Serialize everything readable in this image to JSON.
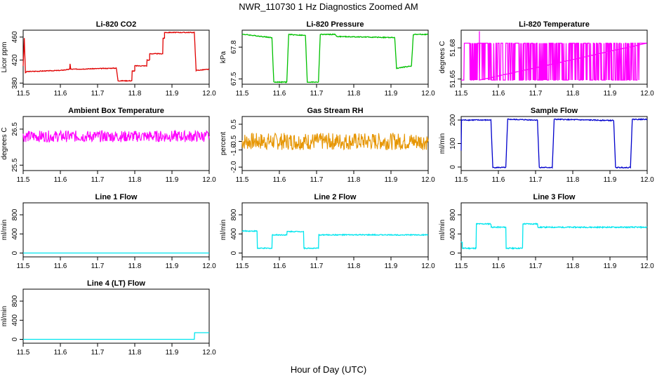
{
  "figure": {
    "title": "NWR_110730  1 Hz Diagnostics Zoomed AM",
    "xlabel": "Hour of Day (UTC)"
  },
  "chart_data": [
    {
      "id": "co2",
      "type": "line",
      "title": "Li-820 CO2",
      "xlabel": "",
      "ylabel": "Licor ppm",
      "color": "#e00000",
      "noise": 0.6,
      "xlim": [
        11.5,
        12.0
      ],
      "ylim": [
        378,
        472
      ],
      "xticks": [
        "11.5",
        "11.6",
        "11.7",
        "11.8",
        "11.9",
        "12.0"
      ],
      "yticks": [
        "380",
        "420",
        "460"
      ],
      "series": [
        {
          "x": [
            11.5,
            11.503,
            11.506,
            11.51,
            11.6,
            11.625,
            11.626,
            11.628,
            11.75,
            11.751,
            11.755,
            11.792,
            11.793,
            11.8,
            11.8,
            11.832,
            11.833,
            11.84,
            11.84,
            11.875,
            11.876,
            11.88,
            11.88,
            11.96,
            11.965,
            12.0
          ],
          "y": [
            410,
            458,
            398,
            400,
            402,
            404,
            414,
            404,
            406,
            404,
            384,
            384,
            401,
            401,
            410,
            410,
            420,
            420,
            431,
            431,
            458,
            458,
            468,
            468,
            402,
            404
          ]
        }
      ]
    },
    {
      "id": "pressure",
      "type": "line",
      "title": "Li-820 Pressure",
      "xlabel": "",
      "ylabel": "kPa",
      "color": "#00c000",
      "noise": 0.004,
      "xlim": [
        11.5,
        12.0
      ],
      "ylim": [
        67.45,
        67.96
      ],
      "xticks": [
        "11.5",
        "11.6",
        "11.7",
        "11.8",
        "11.9",
        "12.0"
      ],
      "yticks": [
        "67.5",
        "67.8"
      ],
      "series": [
        {
          "x": [
            11.5,
            11.505,
            11.58,
            11.585,
            11.62,
            11.625,
            11.67,
            11.675,
            11.705,
            11.71,
            11.75,
            11.755,
            11.91,
            11.915,
            11.95,
            11.955,
            11.96,
            11.965,
            12.0
          ],
          "y": [
            67.92,
            67.92,
            67.89,
            67.47,
            67.47,
            67.92,
            67.91,
            67.47,
            67.47,
            67.92,
            67.92,
            67.9,
            67.89,
            67.6,
            67.62,
            67.62,
            67.92,
            67.92,
            67.92
          ]
        }
      ]
    },
    {
      "id": "licor_temp",
      "type": "line",
      "title": "Li-820 Temperature",
      "xlabel": "",
      "ylabel": "degrees C",
      "color": "#ff00ff",
      "noise": 0,
      "pattern": "binary",
      "binary_levels": [
        51.649,
        51.6845
      ],
      "spike": [
        11.549,
        51.696
      ],
      "xlim": [
        11.5,
        12.0
      ],
      "ylim": [
        51.645,
        51.697
      ],
      "xticks": [
        "11.5",
        "11.6",
        "11.7",
        "11.8",
        "11.9",
        "12.0"
      ],
      "yticks": [
        "51.65",
        "51.68"
      ],
      "series": [
        {
          "x": [
            11.5,
            12.0
          ],
          "y": [
            51.649,
            51.649
          ]
        }
      ]
    },
    {
      "id": "ambient_temp",
      "type": "line",
      "title": "Ambient Box Temperature",
      "xlabel": "",
      "ylabel": "degrees C",
      "color": "#ff00ff",
      "noise": 0.16,
      "xlim": [
        11.5,
        12.0
      ],
      "ylim": [
        25.35,
        26.85
      ],
      "xticks": [
        "11.5",
        "11.6",
        "11.7",
        "11.8",
        "11.9",
        "12.0"
      ],
      "yticks": [
        "25.5",
        "26.5"
      ],
      "series": [
        {
          "x": [
            11.5,
            12.0
          ],
          "y": [
            26.3,
            26.3
          ]
        }
      ]
    },
    {
      "id": "rh",
      "type": "line",
      "title": "Gas Stream RH",
      "xlabel": "",
      "ylabel": "percent",
      "color": "#e69500",
      "noise": 0.5,
      "xlim": [
        11.5,
        12.0
      ],
      "ylim": [
        -2.2,
        0.95
      ],
      "xticks": [
        "11.5",
        "11.6",
        "11.7",
        "11.8",
        "11.9",
        "12.0"
      ],
      "yticks": [
        "-2.0",
        "-1.0",
        "-0.5",
        "0.5"
      ],
      "ytick_values": [
        -2.0,
        -1.0,
        -0.5,
        0.5
      ],
      "series": [
        {
          "x": [
            11.5,
            12.0
          ],
          "y": [
            -0.5,
            -0.5
          ]
        }
      ]
    },
    {
      "id": "sample_flow",
      "type": "line",
      "title": "Sample Flow",
      "xlabel": "",
      "ylabel": "ml/min",
      "color": "#0000cc",
      "noise": 2,
      "xlim": [
        11.5,
        12.0
      ],
      "ylim": [
        -15,
        215
      ],
      "xticks": [
        "11.5",
        "11.6",
        "11.7",
        "11.8",
        "11.9",
        "12.0"
      ],
      "yticks": [
        "0",
        "100",
        "200"
      ],
      "series": [
        {
          "x": [
            11.5,
            11.501,
            11.505,
            11.58,
            11.585,
            11.62,
            11.625,
            11.705,
            11.71,
            11.745,
            11.75,
            11.91,
            11.915,
            11.955,
            11.96,
            12.0
          ],
          "y": [
            70,
            200,
            200,
            200,
            -2,
            -2,
            203,
            200,
            -2,
            -2,
            203,
            198,
            -2,
            -2,
            203,
            203
          ]
        }
      ]
    },
    {
      "id": "line1",
      "type": "line",
      "title": "Line 1 Flow",
      "xlabel": "",
      "ylabel": "ml/min",
      "color": "#00e5ee",
      "noise": 0,
      "xlim": [
        11.5,
        12.0
      ],
      "ylim": [
        -80,
        1050
      ],
      "xticks": [
        "11.5",
        "11.6",
        "11.7",
        "11.8",
        "11.9",
        "12.0"
      ],
      "yticks": [
        "0",
        "400",
        "800"
      ],
      "series": [
        {
          "x": [
            11.5,
            12.0
          ],
          "y": [
            0,
            0
          ]
        }
      ]
    },
    {
      "id": "line2",
      "type": "line",
      "title": "Line 2 Flow",
      "xlabel": "",
      "ylabel": "ml/min",
      "color": "#00e5ee",
      "noise": 10,
      "xlim": [
        11.5,
        12.0
      ],
      "ylim": [
        -80,
        1050
      ],
      "xticks": [
        "11.5",
        "11.6",
        "11.7",
        "11.8",
        "11.9",
        "12.0"
      ],
      "yticks": [
        "0",
        "400",
        "800"
      ],
      "series": [
        {
          "x": [
            11.5,
            11.54,
            11.541,
            11.58,
            11.581,
            11.62,
            11.621,
            11.665,
            11.666,
            11.705,
            11.706,
            12.0
          ],
          "y": [
            460,
            460,
            100,
            100,
            380,
            380,
            450,
            450,
            100,
            100,
            380,
            380
          ]
        }
      ]
    },
    {
      "id": "line3",
      "type": "line",
      "title": "Line 3 Flow",
      "xlabel": "",
      "ylabel": "ml/min",
      "color": "#00e5ee",
      "noise": 12,
      "xlim": [
        11.5,
        12.0
      ],
      "ylim": [
        -80,
        1050
      ],
      "xticks": [
        "11.5",
        "11.6",
        "11.7",
        "11.8",
        "11.9",
        "12.0"
      ],
      "yticks": [
        "0",
        "400",
        "800"
      ],
      "series": [
        {
          "x": [
            11.5,
            11.503,
            11.503,
            11.54,
            11.541,
            11.58,
            11.581,
            11.62,
            11.621,
            11.665,
            11.666,
            11.705,
            11.706,
            12.0
          ],
          "y": [
            230,
            230,
            100,
            100,
            610,
            610,
            540,
            540,
            100,
            100,
            610,
            610,
            540,
            540
          ]
        }
      ]
    },
    {
      "id": "line4",
      "type": "line",
      "title": "Line 4 (LT) Flow",
      "xlabel": "",
      "ylabel": "ml/min",
      "color": "#00e5ee",
      "noise": 0,
      "xlim": [
        11.5,
        12.0
      ],
      "ylim": [
        -80,
        1050
      ],
      "xticks": [
        "11.5",
        "11.6",
        "11.7",
        "11.8",
        "11.9",
        "12.0"
      ],
      "yticks": [
        "0",
        "400",
        "800"
      ],
      "series": [
        {
          "x": [
            11.5,
            11.96,
            11.961,
            12.0
          ],
          "y": [
            0,
            0,
            140,
            140
          ]
        }
      ]
    }
  ]
}
